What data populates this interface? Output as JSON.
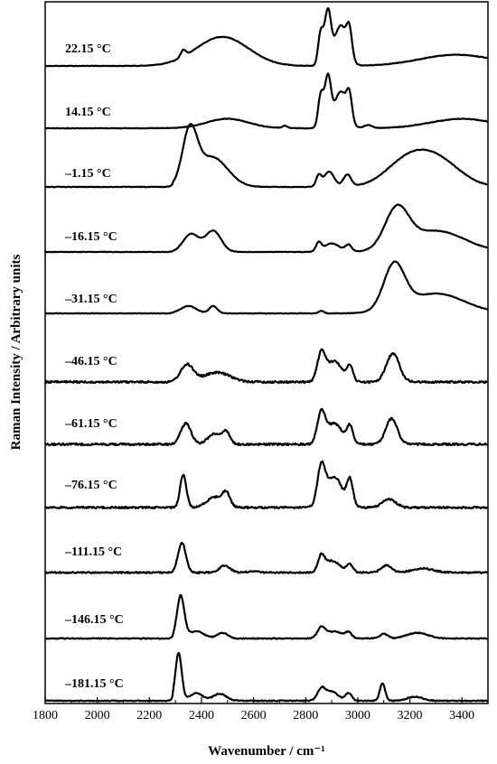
{
  "chart_data": {
    "type": "line",
    "xlabel": "Wavenumber / cm⁻¹",
    "ylabel": "Raman Intensity / Arbitrary units",
    "xlim": [
      1800,
      3500
    ],
    "xticks": [
      1800,
      2000,
      2200,
      2400,
      2600,
      2800,
      3000,
      3200,
      3400
    ],
    "grid": false,
    "legend": "none",
    "line_color": "#000000",
    "series": [
      {
        "name": "22.15 °C",
        "label": "22.15 °C",
        "peaks": [
          [
            2330,
            0.12,
            10
          ],
          [
            2480,
            0.52,
            100
          ],
          [
            2858,
            0.58,
            10
          ],
          [
            2885,
            0.92,
            12
          ],
          [
            2935,
            0.72,
            25
          ],
          [
            2968,
            0.45,
            10
          ],
          [
            3380,
            0.2,
            140
          ]
        ]
      },
      {
        "name": "14.15 °C",
        "label": "14.15 °C",
        "peaks": [
          [
            2500,
            0.18,
            80
          ],
          [
            2720,
            0.04,
            10
          ],
          [
            2858,
            0.62,
            10
          ],
          [
            2885,
            0.93,
            12
          ],
          [
            2935,
            0.7,
            25
          ],
          [
            2968,
            0.45,
            10
          ],
          [
            3040,
            0.06,
            15
          ],
          [
            3400,
            0.18,
            120
          ]
        ]
      },
      {
        "name": "–1.15 °C",
        "label": "–1.15 °C",
        "peaks": [
          [
            2355,
            0.95,
            28
          ],
          [
            2440,
            0.55,
            60
          ],
          [
            2850,
            0.2,
            10
          ],
          [
            2890,
            0.28,
            20
          ],
          [
            2960,
            0.22,
            15
          ],
          [
            3180,
            0.38,
            80
          ],
          [
            3300,
            0.5,
            90
          ]
        ]
      },
      {
        "name": "–16.15 °C",
        "label": "–16.15 °C",
        "peaks": [
          [
            2360,
            0.38,
            30
          ],
          [
            2445,
            0.45,
            30
          ],
          [
            2850,
            0.18,
            10
          ],
          [
            2900,
            0.18,
            30
          ],
          [
            2965,
            0.14,
            12
          ],
          [
            3150,
            0.82,
            45
          ],
          [
            3300,
            0.45,
            110
          ]
        ]
      },
      {
        "name": "–31.15 °C",
        "label": "–31.15 °C",
        "peaks": [
          [
            2350,
            0.15,
            30
          ],
          [
            2445,
            0.15,
            15
          ],
          [
            2860,
            0.05,
            10
          ],
          [
            3140,
            0.9,
            40
          ],
          [
            3300,
            0.4,
            110
          ]
        ]
      },
      {
        "name": "–46.15 °C",
        "label": "–46.15 °C",
        "peaks": [
          [
            2345,
            0.45,
            25
          ],
          [
            2460,
            0.25,
            50
          ],
          [
            2860,
            0.7,
            15
          ],
          [
            2910,
            0.55,
            30
          ],
          [
            2970,
            0.38,
            12
          ],
          [
            3135,
            0.75,
            25
          ]
        ]
      },
      {
        "name": "–61.15 °C",
        "label": "–61.15 °C",
        "peaks": [
          [
            2340,
            0.55,
            20
          ],
          [
            2450,
            0.28,
            25
          ],
          [
            2495,
            0.3,
            15
          ],
          [
            2860,
            0.78,
            15
          ],
          [
            2910,
            0.55,
            30
          ],
          [
            2970,
            0.45,
            12
          ],
          [
            3130,
            0.68,
            22
          ]
        ]
      },
      {
        "name": "–76.15 °C",
        "label": "–76.15 °C",
        "peaks": [
          [
            2330,
            0.7,
            12
          ],
          [
            2450,
            0.22,
            30
          ],
          [
            2495,
            0.28,
            15
          ],
          [
            2860,
            0.8,
            15
          ],
          [
            2910,
            0.65,
            30
          ],
          [
            2970,
            0.55,
            12
          ],
          [
            3120,
            0.18,
            25
          ]
        ]
      },
      {
        "name": "–111.15 °C",
        "label": "–111.15 °C",
        "peaks": [
          [
            2325,
            0.75,
            15
          ],
          [
            2490,
            0.18,
            20
          ],
          [
            2600,
            0.03,
            20
          ],
          [
            2860,
            0.35,
            12
          ],
          [
            2900,
            0.3,
            30
          ],
          [
            2970,
            0.2,
            12
          ],
          [
            3110,
            0.18,
            20
          ],
          [
            3250,
            0.1,
            40
          ]
        ]
      },
      {
        "name": "–146.15 °C",
        "label": "–146.15 °C",
        "peaks": [
          [
            2320,
            0.9,
            14
          ],
          [
            2380,
            0.15,
            30
          ],
          [
            2480,
            0.12,
            20
          ],
          [
            2860,
            0.22,
            15
          ],
          [
            2910,
            0.15,
            30
          ],
          [
            2965,
            0.12,
            12
          ],
          [
            3100,
            0.1,
            15
          ],
          [
            3230,
            0.12,
            40
          ]
        ]
      },
      {
        "name": "–181.15 °C",
        "label": "–181.15 °C",
        "peaks": [
          [
            2312,
            0.95,
            12
          ],
          [
            2380,
            0.15,
            25
          ],
          [
            2470,
            0.14,
            25
          ],
          [
            2860,
            0.22,
            15
          ],
          [
            2900,
            0.18,
            25
          ],
          [
            2965,
            0.15,
            12
          ],
          [
            3095,
            0.35,
            10
          ],
          [
            3220,
            0.08,
            30
          ]
        ]
      }
    ]
  }
}
